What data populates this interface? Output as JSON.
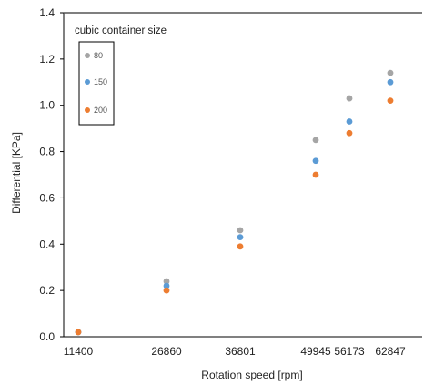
{
  "chart_data": {
    "type": "scatter",
    "xlabel": "Rotation speed [rpm]",
    "ylabel": "Differential [KPa]",
    "x_categories": [
      "11400",
      "26860",
      "36801",
      "49945",
      "56173",
      "62847"
    ],
    "ylim": [
      0,
      1.4
    ],
    "yticks": [
      "0.0",
      "0.2",
      "0.4",
      "0.6",
      "0.8",
      "1.0",
      "1.2",
      "1.4"
    ],
    "grid": false,
    "legend": {
      "title": "cubic container size",
      "position": "top-left"
    },
    "series": [
      {
        "name": "80",
        "color": "#a5a5a5",
        "values": [
          0.02,
          0.24,
          0.46,
          0.85,
          1.03,
          1.14
        ]
      },
      {
        "name": "150",
        "color": "#5b9bd5",
        "values": [
          0.02,
          0.22,
          0.43,
          0.76,
          0.93,
          1.1
        ]
      },
      {
        "name": "200",
        "color": "#ed7d31",
        "values": [
          0.02,
          0.2,
          0.39,
          0.7,
          0.88,
          1.02
        ]
      }
    ]
  }
}
